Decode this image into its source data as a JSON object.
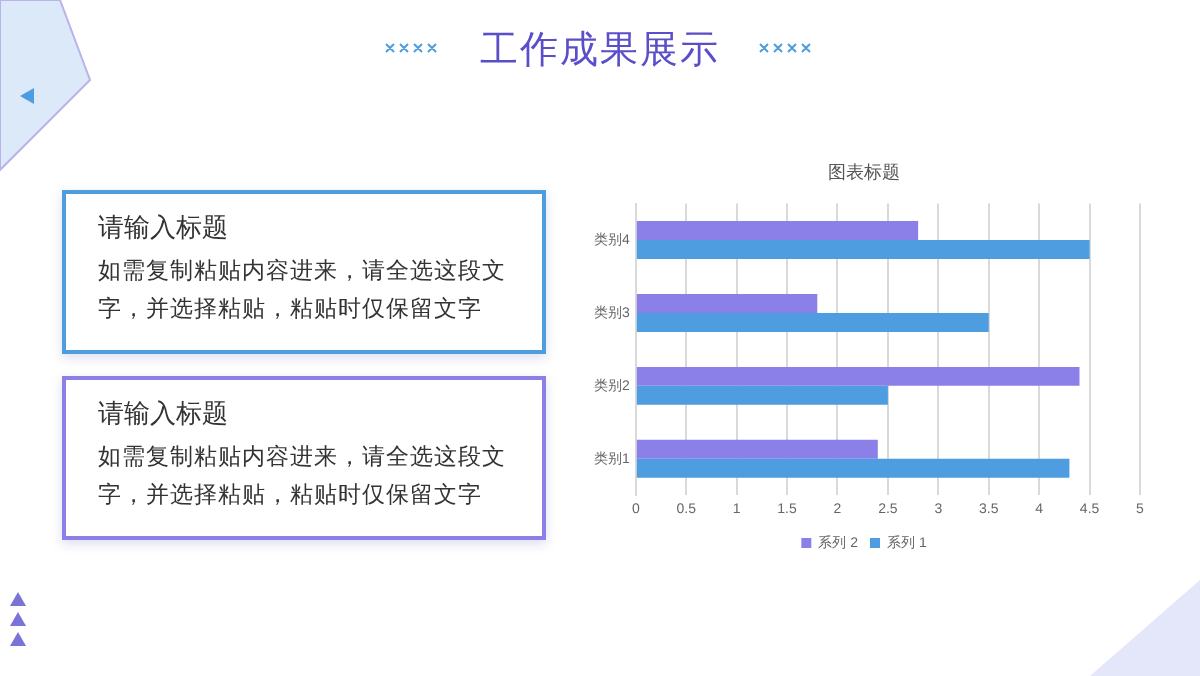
{
  "chart_data": {
    "type": "bar",
    "orientation": "horizontal",
    "title": "工作成果展示",
    "subtitle": "图表标题",
    "categories": [
      "类别4",
      "类别3",
      "类别2",
      "类别1"
    ],
    "series": [
      {
        "name": "系列 2",
        "color": "#8a80e8",
        "values": [
          2.8,
          1.8,
          4.4,
          2.4
        ]
      },
      {
        "name": "系列 1",
        "color": "#4e9de0",
        "values": [
          4.5,
          3.5,
          2.5,
          4.3
        ]
      }
    ],
    "xlim": [
      0,
      5
    ],
    "xticks": [
      0,
      0.5,
      1,
      1.5,
      2,
      2.5,
      3,
      3.5,
      4,
      4.5,
      5
    ],
    "grid": "x",
    "legend": "bottom",
    "annotations": [
      "请输入标题",
      "如需复制粘贴内容进来，请全选这段文字，并选择粘贴，粘贴时仅保留文字",
      "请输入标题",
      "如需复制粘贴内容进来，请全选这段文字，并选择粘贴，粘贴时仅保留文字"
    ]
  }
}
